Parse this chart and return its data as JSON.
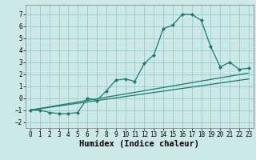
{
  "xlabel": "Humidex (Indice chaleur)",
  "bg_color": "#cce8e8",
  "grid_color": "#99cccc",
  "line_color": "#1a7a6e",
  "xlim": [
    -0.5,
    23.5
  ],
  "ylim": [
    -2.5,
    7.8
  ],
  "xticks": [
    0,
    1,
    2,
    3,
    4,
    5,
    6,
    7,
    8,
    9,
    10,
    11,
    12,
    13,
    14,
    15,
    16,
    17,
    18,
    19,
    20,
    21,
    22,
    23
  ],
  "yticks": [
    -2,
    -1,
    0,
    1,
    2,
    3,
    4,
    5,
    6,
    7
  ],
  "line1_x": [
    0,
    1,
    2,
    3,
    4,
    5,
    6,
    7,
    8,
    9,
    10,
    11,
    12,
    13,
    14,
    15,
    16,
    17,
    18,
    19,
    20,
    21,
    22,
    23
  ],
  "line1_y": [
    -1.0,
    -1.0,
    -1.2,
    -1.3,
    -1.3,
    -1.2,
    0.0,
    -0.2,
    0.6,
    1.5,
    1.6,
    1.4,
    2.9,
    3.6,
    5.8,
    6.1,
    7.0,
    7.0,
    6.5,
    4.3,
    2.6,
    3.0,
    2.4,
    2.5
  ],
  "line2_x": [
    0,
    23
  ],
  "line2_y": [
    -1.0,
    1.6
  ],
  "line3_x": [
    0,
    23
  ],
  "line3_y": [
    -1.0,
    2.1
  ],
  "font_family": "monospace",
  "tick_fontsize": 5.5,
  "label_fontsize": 7.5
}
